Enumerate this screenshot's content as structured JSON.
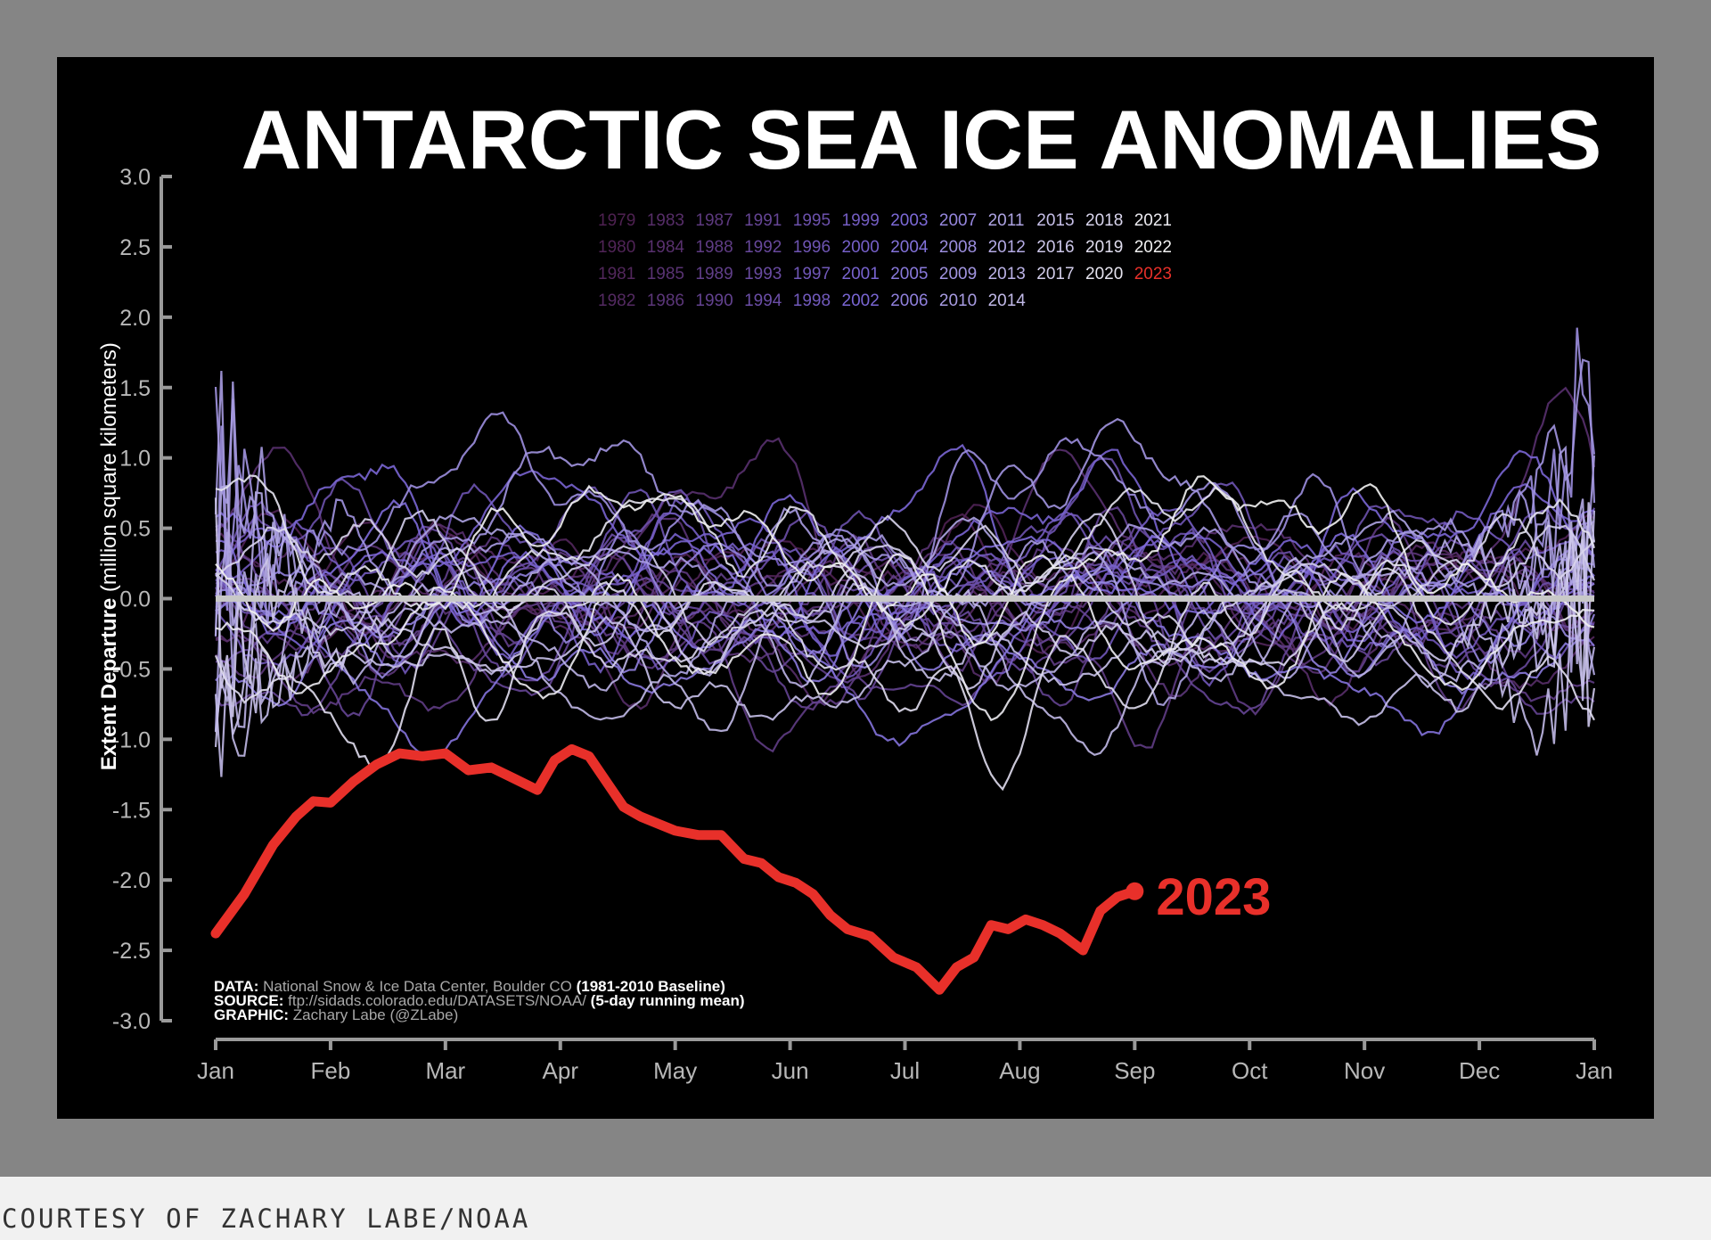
{
  "caption": "COURTESY OF ZACHARY LABE/NOAA",
  "chart_data": {
    "type": "line",
    "title": "ANTARCTIC SEA ICE ANOMALIES",
    "ylabel_bold": "Extent Departure",
    "ylabel_rest": "(million square kilometers)",
    "xlabel": "",
    "ylim": [
      -3.0,
      3.0
    ],
    "yticks": [
      "3.0",
      "2.5",
      "2.0",
      "1.5",
      "1.0",
      "0.5",
      "0.0",
      "-0.5",
      "-1.0",
      "-1.5",
      "-2.0",
      "-2.5",
      "-3.0"
    ],
    "ytick_values": [
      3.0,
      2.5,
      2.0,
      1.5,
      1.0,
      0.5,
      0.0,
      -0.5,
      -1.0,
      -1.5,
      -2.0,
      -2.5,
      -3.0
    ],
    "xlim": [
      0,
      12
    ],
    "xticks": [
      "Jan",
      "Feb",
      "Mar",
      "Apr",
      "May",
      "Jun",
      "Jul",
      "Aug",
      "Sep",
      "Oct",
      "Nov",
      "Dec",
      "Jan"
    ],
    "baseline_value": 0.0,
    "legend_rows": [
      [
        "1979",
        "1983",
        "1987",
        "1991",
        "1995",
        "1999",
        "2003",
        "2007",
        "2011",
        "2015",
        "2018",
        "2021"
      ],
      [
        "1980",
        "1984",
        "1988",
        "1992",
        "1996",
        "2000",
        "2004",
        "2008",
        "2012",
        "2016",
        "2019",
        "2022"
      ],
      [
        "1981",
        "1985",
        "1989",
        "1993",
        "1997",
        "2001",
        "2005",
        "2009",
        "2013",
        "2017",
        "2020",
        "2023"
      ],
      [
        "1982",
        "1986",
        "1990",
        "1994",
        "1998",
        "2002",
        "2006",
        "2010",
        "2014"
      ]
    ],
    "highlight": {
      "name": "2023",
      "label": "2023",
      "color": "#e8302a",
      "x": [
        0.0,
        0.25,
        0.5,
        0.7,
        0.85,
        1.0,
        1.2,
        1.4,
        1.6,
        1.8,
        2.0,
        2.2,
        2.4,
        2.6,
        2.8,
        2.95,
        3.1,
        3.25,
        3.4,
        3.55,
        3.7,
        3.85,
        4.0,
        4.2,
        4.4,
        4.6,
        4.75,
        4.9,
        5.05,
        5.2,
        5.35,
        5.5,
        5.7,
        5.9,
        6.1,
        6.3,
        6.45,
        6.6,
        6.75,
        6.9,
        7.05,
        7.2,
        7.35,
        7.55,
        7.7,
        7.85,
        8.0
      ],
      "values": [
        -2.38,
        -2.1,
        -1.75,
        -1.55,
        -1.44,
        -1.45,
        -1.3,
        -1.18,
        -1.1,
        -1.12,
        -1.1,
        -1.22,
        -1.2,
        -1.28,
        -1.36,
        -1.15,
        -1.07,
        -1.12,
        -1.3,
        -1.48,
        -1.55,
        -1.6,
        -1.65,
        -1.68,
        -1.68,
        -1.85,
        -1.88,
        -1.98,
        -2.02,
        -2.1,
        -2.25,
        -2.35,
        -2.4,
        -2.55,
        -2.62,
        -2.78,
        -2.62,
        -2.55,
        -2.32,
        -2.35,
        -2.28,
        -2.32,
        -2.38,
        -2.5,
        -2.22,
        -2.12,
        -2.08
      ]
    },
    "annotations": [
      {
        "bold": "DATA:",
        "text": " National Snow & Ice Data Center, Boulder CO ",
        "bold2": "(1981-2010 Baseline)"
      },
      {
        "bold": "SOURCE:",
        "text": " ftp://sidads.colorado.edu/DATASETS/NOAA/ ",
        "bold2": "(5-day running mean)"
      },
      {
        "bold": "GRAPHIC:",
        "text": " Zachary Labe (@ZLabe)",
        "bold2": ""
      }
    ],
    "colors": {
      "background": "#000000",
      "axis": "#9a9a9a",
      "baseline": "#c8c8c8",
      "text": "#ffffff",
      "tick_label": "#b8b8b8",
      "early_year": "#4e2151",
      "mid_year": "#7b68d8",
      "late_year": "#f2f2f2"
    }
  }
}
